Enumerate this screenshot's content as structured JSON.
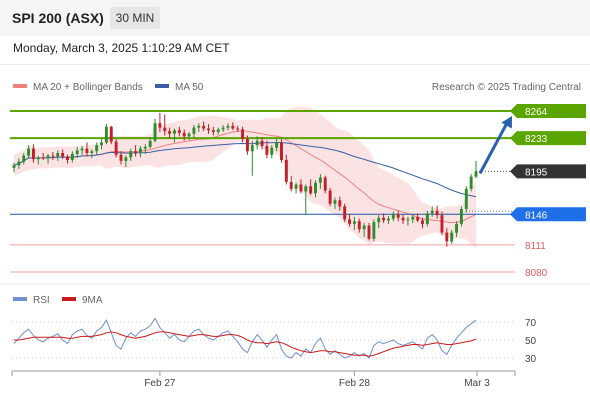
{
  "header": {
    "title": "SPI 200 (ASX)",
    "interval": "30 MIN",
    "datetime": "Monday, March 3, 2025 1:10:29 AM CET"
  },
  "legend": {
    "ma20": "MA 20 + Bollinger Bands",
    "ma50": "MA 50",
    "credit": "Research © 2025 Trading Central",
    "rsi": "RSI",
    "rsi_ma": "9MA"
  },
  "colors": {
    "bull": "#2e8b2e",
    "bear": "#c0202a",
    "ma20": "#f08080",
    "ma50": "#3a5fa8",
    "band_fill": "#fbe3e3",
    "resistance": "#5aa500",
    "support": "#1f57a8",
    "support_red": "#e35b5b",
    "rsi": "#6f8fcf",
    "rsi_ma": "#cc1a1a",
    "price_tag": "#333333",
    "blue_tag": "#1e6fe8",
    "arrow": "#2a60b0"
  },
  "chart_data": {
    "type": "candlestick",
    "x_tick_labels": [
      "Feb 27",
      "Feb 28",
      "Mar 3"
    ],
    "current_price": "8195",
    "levels": [
      {
        "label": "8264",
        "value": 8264,
        "style": "resistance-strong"
      },
      {
        "label": "8233",
        "value": 8233,
        "style": "resistance-strong"
      },
      {
        "label": "8195",
        "value": 8195,
        "style": "current"
      },
      {
        "label": "8146",
        "value": 8146,
        "style": "support-pivot"
      },
      {
        "label": "8111",
        "value": 8111,
        "style": "support"
      },
      {
        "label": "8080",
        "value": 8080,
        "style": "support"
      }
    ],
    "forecast_arrow": {
      "from": 8195,
      "to": 8264
    },
    "candles": [
      [
        8199,
        8205,
        8194,
        8202
      ],
      [
        8202,
        8210,
        8198,
        8206
      ],
      [
        8206,
        8216,
        8203,
        8213
      ],
      [
        8213,
        8225,
        8210,
        8221
      ],
      [
        8221,
        8226,
        8205,
        8209
      ],
      [
        8209,
        8213,
        8203,
        8211
      ],
      [
        8211,
        8216,
        8208,
        8210
      ],
      [
        8210,
        8215,
        8204,
        8213
      ],
      [
        8213,
        8217,
        8208,
        8212
      ],
      [
        8212,
        8219,
        8207,
        8216
      ],
      [
        8216,
        8220,
        8209,
        8212
      ],
      [
        8212,
        8214,
        8204,
        8208
      ],
      [
        8208,
        8218,
        8205,
        8215
      ],
      [
        8215,
        8223,
        8210,
        8219
      ],
      [
        8219,
        8224,
        8214,
        8221
      ],
      [
        8221,
        8228,
        8212,
        8216
      ],
      [
        8216,
        8220,
        8210,
        8218
      ],
      [
        8218,
        8228,
        8214,
        8225
      ],
      [
        8225,
        8232,
        8220,
        8228
      ],
      [
        8228,
        8249,
        8226,
        8246
      ],
      [
        8246,
        8247,
        8226,
        8229
      ],
      [
        8229,
        8232,
        8211,
        8214
      ],
      [
        8214,
        8218,
        8203,
        8207
      ],
      [
        8207,
        8213,
        8200,
        8211
      ],
      [
        8211,
        8221,
        8207,
        8218
      ],
      [
        8218,
        8225,
        8212,
        8216
      ],
      [
        8216,
        8224,
        8211,
        8221
      ],
      [
        8221,
        8226,
        8215,
        8223
      ],
      [
        8223,
        8234,
        8221,
        8230
      ],
      [
        8230,
        8255,
        8228,
        8250
      ],
      [
        8250,
        8262,
        8240,
        8245
      ],
      [
        8245,
        8260,
        8236,
        8241
      ],
      [
        8241,
        8245,
        8232,
        8238
      ],
      [
        8238,
        8244,
        8228,
        8242
      ],
      [
        8242,
        8246,
        8235,
        8239
      ],
      [
        8239,
        8243,
        8230,
        8235
      ],
      [
        8235,
        8240,
        8231,
        8238
      ],
      [
        8238,
        8248,
        8233,
        8245
      ],
      [
        8245,
        8250,
        8240,
        8247
      ],
      [
        8247,
        8252,
        8241,
        8244
      ],
      [
        8244,
        8249,
        8238,
        8242
      ],
      [
        8242,
        8246,
        8236,
        8240
      ],
      [
        8240,
        8245,
        8237,
        8243
      ],
      [
        8243,
        8248,
        8240,
        8245
      ],
      [
        8245,
        8250,
        8242,
        8247
      ],
      [
        8247,
        8251,
        8242,
        8244
      ],
      [
        8244,
        8247,
        8240,
        8243
      ],
      [
        8243,
        8246,
        8228,
        8232
      ],
      [
        8232,
        8236,
        8214,
        8218
      ],
      [
        8218,
        8230,
        8190,
        8225
      ],
      [
        8225,
        8235,
        8220,
        8230
      ],
      [
        8230,
        8234,
        8220,
        8224
      ],
      [
        8224,
        8230,
        8210,
        8214
      ],
      [
        8214,
        8225,
        8210,
        8222
      ],
      [
        8222,
        8232,
        8218,
        8228
      ],
      [
        8228,
        8232,
        8205,
        8208
      ],
      [
        8208,
        8214,
        8180,
        8183
      ],
      [
        8183,
        8190,
        8172,
        8175
      ],
      [
        8175,
        8182,
        8170,
        8180
      ],
      [
        8180,
        8186,
        8170,
        8172
      ],
      [
        8172,
        8180,
        8145,
        8178
      ],
      [
        8178,
        8186,
        8168,
        8170
      ],
      [
        8170,
        8185,
        8165,
        8182
      ],
      [
        8182,
        8192,
        8175,
        8188
      ],
      [
        8188,
        8190,
        8170,
        8173
      ],
      [
        8173,
        8176,
        8155,
        8158
      ],
      [
        8158,
        8165,
        8152,
        8162
      ],
      [
        8162,
        8166,
        8150,
        8155
      ],
      [
        8155,
        8158,
        8137,
        8140
      ],
      [
        8140,
        8146,
        8132,
        8135
      ],
      [
        8135,
        8143,
        8128,
        8138
      ],
      [
        8138,
        8141,
        8125,
        8129
      ],
      [
        8129,
        8136,
        8120,
        8133
      ],
      [
        8133,
        8136,
        8116,
        8118
      ],
      [
        8118,
        8140,
        8115,
        8137
      ],
      [
        8137,
        8145,
        8130,
        8142
      ],
      [
        8142,
        8147,
        8136,
        8139
      ],
      [
        8139,
        8144,
        8135,
        8141
      ],
      [
        8141,
        8149,
        8138,
        8146
      ],
      [
        8146,
        8150,
        8138,
        8142
      ],
      [
        8142,
        8146,
        8135,
        8139
      ],
      [
        8139,
        8143,
        8133,
        8140
      ],
      [
        8140,
        8145,
        8136,
        8143
      ],
      [
        8143,
        8147,
        8137,
        8139
      ],
      [
        8139,
        8142,
        8130,
        8135
      ],
      [
        8135,
        8150,
        8132,
        8147
      ],
      [
        8147,
        8155,
        8143,
        8150
      ],
      [
        8150,
        8156,
        8141,
        8145
      ],
      [
        8145,
        8149,
        8122,
        8125
      ],
      [
        8125,
        8130,
        8109,
        8115
      ],
      [
        8115,
        8128,
        8112,
        8125
      ],
      [
        8125,
        8138,
        8120,
        8135
      ],
      [
        8135,
        8155,
        8132,
        8152
      ],
      [
        8152,
        8178,
        8148,
        8175
      ],
      [
        8175,
        8192,
        8172,
        8189
      ],
      [
        8189,
        8207,
        8187,
        8195
      ]
    ],
    "rsi_axis": {
      "ticks": [
        70,
        50,
        30
      ],
      "ylim": [
        20,
        80
      ]
    },
    "rsi": [
      46,
      52,
      58,
      62,
      55,
      50,
      48,
      52,
      54,
      57,
      50,
      46,
      56,
      60,
      62,
      55,
      52,
      60,
      64,
      72,
      58,
      44,
      40,
      52,
      58,
      54,
      60,
      62,
      66,
      74,
      64,
      58,
      52,
      56,
      50,
      48,
      54,
      60,
      62,
      56,
      52,
      50,
      54,
      58,
      60,
      54,
      48,
      40,
      36,
      48,
      56,
      50,
      42,
      50,
      56,
      40,
      32,
      30,
      36,
      32,
      40,
      36,
      46,
      52,
      40,
      34,
      38,
      34,
      30,
      32,
      36,
      32,
      35,
      30,
      44,
      48,
      46,
      48,
      50,
      46,
      44,
      46,
      48,
      44,
      40,
      52,
      56,
      50,
      38,
      34,
      44,
      52,
      58,
      64,
      68,
      72
    ],
    "rsi_ma": [
      50,
      50,
      51,
      52,
      53,
      53,
      53,
      53,
      53,
      53,
      53,
      52,
      52,
      53,
      54,
      54,
      54,
      55,
      56,
      58,
      59,
      58,
      56,
      54,
      53,
      52,
      53,
      54,
      56,
      58,
      59,
      59,
      58,
      57,
      56,
      55,
      54,
      55,
      56,
      56,
      55,
      54,
      54,
      55,
      56,
      56,
      55,
      53,
      50,
      48,
      47,
      47,
      46,
      47,
      48,
      47,
      45,
      42,
      40,
      38,
      37,
      36,
      37,
      38,
      38,
      37,
      37,
      36,
      35,
      34,
      33,
      33,
      33,
      32,
      33,
      35,
      37,
      39,
      41,
      42,
      43,
      44,
      45,
      45,
      44,
      45,
      46,
      47,
      46,
      45,
      45,
      46,
      47,
      48,
      49,
      51
    ]
  }
}
